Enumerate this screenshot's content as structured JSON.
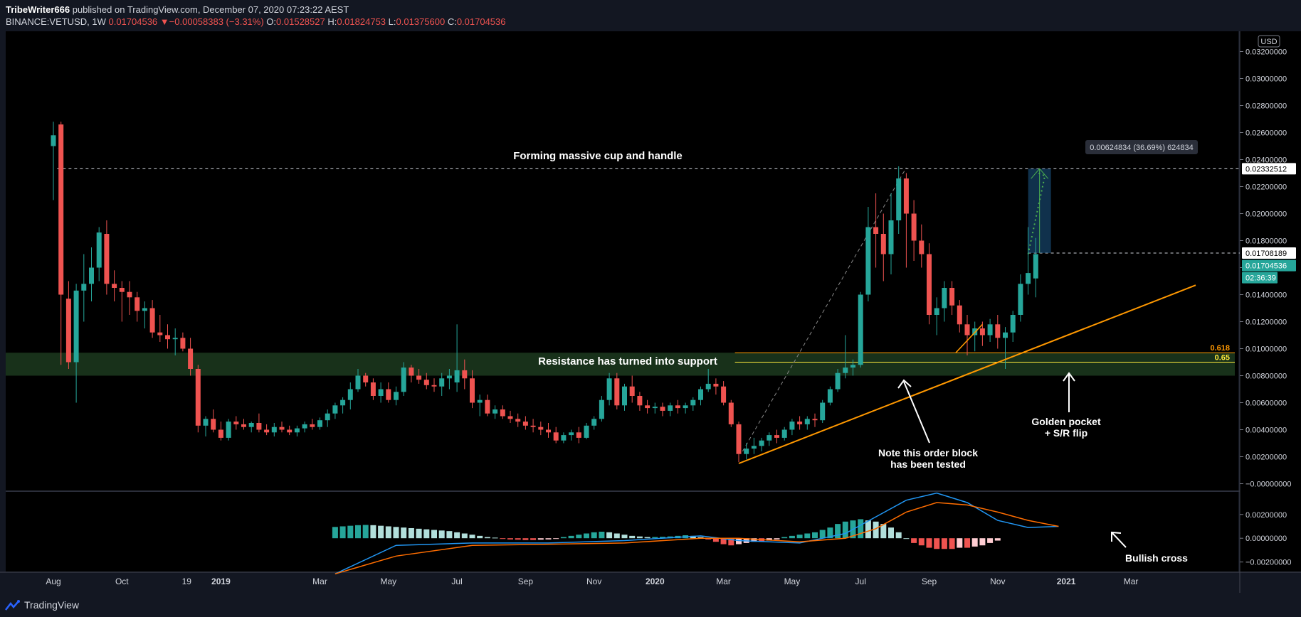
{
  "header": {
    "publisher": "TribeWriter666",
    "published_text": "published on TradingView.com, December 07, 2020 07:23:22 AEST",
    "symbol": "BINANCE:VETUSD, 1W",
    "last": "0.01704536",
    "change_arrow": "▼",
    "change": "−0.00058383 (−3.31%)",
    "o_label": "O:",
    "o": "0.01528527",
    "h_label": "H:",
    "h": "0.01824753",
    "l_label": "L:",
    "l": "0.01375600",
    "c_label": "C:",
    "c": "0.01704536"
  },
  "footer": {
    "brand": "TradingView",
    "logo_icon": "tradingview-logo-icon"
  },
  "colors": {
    "up": "#26a69a",
    "down": "#ef5350",
    "bg": "#000000",
    "grid": "#1e222d",
    "trend": "#ff9800",
    "macd": "#2196f3",
    "signal": "#ff6d00"
  },
  "chart_data": {
    "type": "candlestick",
    "symbol": "BINANCE:VETUSD",
    "interval": "1W",
    "currency": "USD",
    "x_ticks": [
      "Aug",
      "Oct",
      "19",
      "2019",
      "Mar",
      "May",
      "Jul",
      "Sep",
      "Nov",
      "2020",
      "Mar",
      "May",
      "Jul",
      "Sep",
      "Nov",
      "2021",
      "Mar"
    ],
    "x_tick_weeks": [
      0,
      9,
      17.5,
      22,
      35,
      44,
      53,
      62,
      71,
      79,
      88,
      97,
      106,
      115,
      124,
      133,
      141.5
    ],
    "y_ticks": [
      "0.03200000",
      "0.03000000",
      "0.02800000",
      "0.02600000",
      "0.02400000",
      "0.02200000",
      "0.02000000",
      "0.01800000",
      "0.01600000",
      "0.01400000",
      "0.01200000",
      "0.01000000",
      "0.00800000",
      "0.00600000",
      "0.00400000",
      "0.00200000",
      "−0.00000000"
    ],
    "y_range": [
      -0.0005,
      0.0335
    ],
    "candles": [
      [
        0.025,
        0.0268,
        0.021,
        0.0258
      ],
      [
        0.0266,
        0.0268,
        0.0088,
        0.014
      ],
      [
        0.0137,
        0.015,
        0.0085,
        0.009
      ],
      [
        0.009,
        0.0148,
        0.006,
        0.0143
      ],
      [
        0.0143,
        0.017,
        0.012,
        0.0148
      ],
      [
        0.0148,
        0.0175,
        0.0135,
        0.016
      ],
      [
        0.016,
        0.019,
        0.015,
        0.0186
      ],
      [
        0.0185,
        0.0195,
        0.014,
        0.0148
      ],
      [
        0.0148,
        0.0158,
        0.0135,
        0.0145
      ],
      [
        0.0145,
        0.015,
        0.012,
        0.0142
      ],
      [
        0.0142,
        0.015,
        0.0125,
        0.0138
      ],
      [
        0.0138,
        0.0142,
        0.012,
        0.0128
      ],
      [
        0.0128,
        0.0135,
        0.0115,
        0.013
      ],
      [
        0.013,
        0.0136,
        0.0108,
        0.0112
      ],
      [
        0.0112,
        0.0125,
        0.0105,
        0.011
      ],
      [
        0.011,
        0.0118,
        0.01,
        0.0107
      ],
      [
        0.0107,
        0.0115,
        0.0095,
        0.0108
      ],
      [
        0.0108,
        0.0112,
        0.0098,
        0.01
      ],
      [
        0.01,
        0.0108,
        0.008,
        0.0085
      ],
      [
        0.0085,
        0.0088,
        0.0038,
        0.0043
      ],
      [
        0.0043,
        0.005,
        0.0035,
        0.0048
      ],
      [
        0.0048,
        0.0055,
        0.0038,
        0.004
      ],
      [
        0.004,
        0.0046,
        0.0032,
        0.0034
      ],
      [
        0.0034,
        0.0048,
        0.0032,
        0.0046
      ],
      [
        0.0046,
        0.005,
        0.004,
        0.0044
      ],
      [
        0.0044,
        0.0048,
        0.004,
        0.0042
      ],
      [
        0.0042,
        0.0046,
        0.0038,
        0.0045
      ],
      [
        0.0045,
        0.0052,
        0.0038,
        0.004
      ],
      [
        0.004,
        0.0044,
        0.0036,
        0.0038
      ],
      [
        0.0038,
        0.0045,
        0.0035,
        0.0042
      ],
      [
        0.0042,
        0.0046,
        0.0038,
        0.004
      ],
      [
        0.004,
        0.0043,
        0.0036,
        0.0038
      ],
      [
        0.0038,
        0.0043,
        0.0035,
        0.0041
      ],
      [
        0.0041,
        0.0046,
        0.0038,
        0.0044
      ],
      [
        0.0044,
        0.0048,
        0.004,
        0.0042
      ],
      [
        0.0042,
        0.0049,
        0.004,
        0.0047
      ],
      [
        0.0047,
        0.0055,
        0.0042,
        0.0052
      ],
      [
        0.0052,
        0.006,
        0.0048,
        0.0058
      ],
      [
        0.0058,
        0.0064,
        0.0052,
        0.0062
      ],
      [
        0.0062,
        0.0075,
        0.0055,
        0.007
      ],
      [
        0.007,
        0.0085,
        0.0068,
        0.008
      ],
      [
        0.008,
        0.0082,
        0.0072,
        0.0075
      ],
      [
        0.0075,
        0.0078,
        0.0062,
        0.0065
      ],
      [
        0.0065,
        0.0075,
        0.006,
        0.007
      ],
      [
        0.007,
        0.0075,
        0.006,
        0.0062
      ],
      [
        0.0062,
        0.0072,
        0.0058,
        0.0068
      ],
      [
        0.0068,
        0.009,
        0.0065,
        0.0086
      ],
      [
        0.0086,
        0.0088,
        0.0075,
        0.008
      ],
      [
        0.008,
        0.0085,
        0.0074,
        0.0077
      ],
      [
        0.0077,
        0.0082,
        0.007,
        0.0073
      ],
      [
        0.0073,
        0.0078,
        0.0068,
        0.0072
      ],
      [
        0.0072,
        0.0082,
        0.0065,
        0.0078
      ],
      [
        0.0078,
        0.0085,
        0.007,
        0.008
      ],
      [
        0.0075,
        0.0118,
        0.0068,
        0.0084
      ],
      [
        0.0084,
        0.0092,
        0.007,
        0.0078
      ],
      [
        0.0078,
        0.0084,
        0.0056,
        0.006
      ],
      [
        0.006,
        0.0066,
        0.005,
        0.0062
      ],
      [
        0.0062,
        0.0066,
        0.005,
        0.0052
      ],
      [
        0.0052,
        0.0058,
        0.0048,
        0.0055
      ],
      [
        0.0055,
        0.0058,
        0.0048,
        0.005
      ],
      [
        0.005,
        0.0054,
        0.0045,
        0.0048
      ],
      [
        0.0048,
        0.0052,
        0.0042,
        0.0046
      ],
      [
        0.0046,
        0.005,
        0.004,
        0.0043
      ],
      [
        0.0043,
        0.0048,
        0.0038,
        0.0042
      ],
      [
        0.0042,
        0.0046,
        0.0036,
        0.004
      ],
      [
        0.004,
        0.0045,
        0.0034,
        0.0038
      ],
      [
        0.0038,
        0.0042,
        0.003,
        0.0032
      ],
      [
        0.0032,
        0.0038,
        0.003,
        0.0036
      ],
      [
        0.0036,
        0.004,
        0.0032,
        0.0038
      ],
      [
        0.0038,
        0.0042,
        0.003,
        0.0034
      ],
      [
        0.0034,
        0.0045,
        0.0033,
        0.0043
      ],
      [
        0.0043,
        0.005,
        0.004,
        0.0048
      ],
      [
        0.0048,
        0.0065,
        0.0046,
        0.0062
      ],
      [
        0.0062,
        0.0082,
        0.0058,
        0.0078
      ],
      [
        0.0078,
        0.0082,
        0.0055,
        0.0058
      ],
      [
        0.0058,
        0.0074,
        0.0054,
        0.0072
      ],
      [
        0.0072,
        0.008,
        0.006,
        0.0065
      ],
      [
        0.0065,
        0.0068,
        0.0054,
        0.0058
      ],
      [
        0.0058,
        0.0062,
        0.0052,
        0.0056
      ],
      [
        0.0056,
        0.006,
        0.0052,
        0.0057
      ],
      [
        0.0057,
        0.006,
        0.005,
        0.0054
      ],
      [
        0.0054,
        0.006,
        0.005,
        0.0058
      ],
      [
        0.0058,
        0.0062,
        0.0052,
        0.0056
      ],
      [
        0.0056,
        0.006,
        0.0052,
        0.0058
      ],
      [
        0.0058,
        0.0064,
        0.0054,
        0.0062
      ],
      [
        0.0062,
        0.0072,
        0.0058,
        0.007
      ],
      [
        0.007,
        0.0085,
        0.0068,
        0.0074
      ],
      [
        0.0074,
        0.0078,
        0.0066,
        0.0072
      ],
      [
        0.0072,
        0.0076,
        0.0058,
        0.006
      ],
      [
        0.006,
        0.0062,
        0.0042,
        0.0044
      ],
      [
        0.0044,
        0.0046,
        0.0016,
        0.0022
      ],
      [
        0.0022,
        0.003,
        0.0018,
        0.0026
      ],
      [
        0.0026,
        0.0034,
        0.0022,
        0.0028
      ],
      [
        0.0028,
        0.0034,
        0.0024,
        0.0032
      ],
      [
        0.0032,
        0.0038,
        0.0028,
        0.0036
      ],
      [
        0.0036,
        0.004,
        0.003,
        0.0034
      ],
      [
        0.0034,
        0.0042,
        0.0032,
        0.004
      ],
      [
        0.004,
        0.0048,
        0.0036,
        0.0046
      ],
      [
        0.0046,
        0.005,
        0.004,
        0.0044
      ],
      [
        0.0044,
        0.005,
        0.004,
        0.0048
      ],
      [
        0.0048,
        0.0052,
        0.0042,
        0.0047
      ],
      [
        0.0047,
        0.0062,
        0.0045,
        0.006
      ],
      [
        0.006,
        0.0072,
        0.0058,
        0.007
      ],
      [
        0.007,
        0.0085,
        0.0068,
        0.0082
      ],
      [
        0.0082,
        0.011,
        0.0078,
        0.0086
      ],
      [
        0.0086,
        0.0092,
        0.008,
        0.0088
      ],
      [
        0.0088,
        0.0142,
        0.0086,
        0.014
      ],
      [
        0.014,
        0.0205,
        0.0135,
        0.019
      ],
      [
        0.019,
        0.0215,
        0.016,
        0.0185
      ],
      [
        0.0185,
        0.02,
        0.015,
        0.017
      ],
      [
        0.017,
        0.0215,
        0.0155,
        0.0195
      ],
      [
        0.0195,
        0.0235,
        0.0185,
        0.0226
      ],
      [
        0.0226,
        0.023,
        0.016,
        0.02
      ],
      [
        0.02,
        0.021,
        0.0165,
        0.018
      ],
      [
        0.018,
        0.0192,
        0.016,
        0.017
      ],
      [
        0.017,
        0.0178,
        0.0118,
        0.0125
      ],
      [
        0.0125,
        0.0138,
        0.011,
        0.013
      ],
      [
        0.013,
        0.015,
        0.012,
        0.0145
      ],
      [
        0.0145,
        0.015,
        0.0125,
        0.0132
      ],
      [
        0.0132,
        0.0136,
        0.0112,
        0.0118
      ],
      [
        0.0118,
        0.0125,
        0.0095,
        0.011
      ],
      [
        0.011,
        0.012,
        0.0098,
        0.0115
      ],
      [
        0.0115,
        0.012,
        0.0102,
        0.011
      ],
      [
        0.011,
        0.0122,
        0.0105,
        0.0118
      ],
      [
        0.0118,
        0.0125,
        0.01,
        0.0108
      ],
      [
        0.0108,
        0.0116,
        0.0085,
        0.0112
      ],
      [
        0.0112,
        0.0128,
        0.0105,
        0.0125
      ],
      [
        0.0125,
        0.0155,
        0.012,
        0.0148
      ],
      [
        0.0148,
        0.019,
        0.014,
        0.0156
      ],
      [
        0.0152,
        0.0182,
        0.0138,
        0.017
      ]
    ],
    "support_zone": [
      0.008,
      0.0097
    ],
    "levels": [
      {
        "label": "0.618",
        "value": 0.0097,
        "color": "#ff9800"
      },
      {
        "label": "0.65",
        "value": 0.009,
        "color": "#ffeb3b"
      }
    ],
    "target_line": 0.02332512,
    "entry_line": 0.01708189,
    "price_labels": [
      "0.02332512",
      "0.01708189",
      "0.01704536",
      "02:36:39"
    ],
    "currency_badge": "USD",
    "measure_label": "0.00624834 (36.69%) 624834",
    "trendline": {
      "from": [
        90,
        0.0015
      ],
      "to": [
        150,
        0.0147
      ]
    },
    "annotations": {
      "cup": "Forming massive cup and handle",
      "support": "Resistance has turned into support",
      "order_block_line1": "Note this order block",
      "order_block_line2": "has been tested",
      "golden_line1": "Golden pocket",
      "golden_line2": "+ S/R flip",
      "bullish_cross": "Bullish cross"
    },
    "macd": {
      "y_ticks": [
        "0.00200000",
        "0.00000000",
        "−0.00200000"
      ],
      "y_range": [
        -0.0028,
        0.0039
      ],
      "start_week": 37,
      "histogram": [
        0.00095,
        0.001,
        0.00105,
        0.0011,
        0.00112,
        0.0011,
        0.00105,
        0.001,
        0.00095,
        0.0009,
        0.00085,
        0.0008,
        0.00075,
        0.0007,
        0.00065,
        0.0006,
        0.0005,
        0.0004,
        0.0003,
        0.0002,
        0.0001,
        5e-05,
        -5e-05,
        -0.0001,
        -0.00012,
        -0.00015,
        -0.00015,
        -0.00012,
        -0.0001,
        -5e-05,
        0.0001,
        0.0002,
        0.0003,
        0.0004,
        0.0005,
        0.00055,
        0.0005,
        0.0004,
        0.0003,
        0.0002,
        0.00015,
        0.0001,
        0.0001,
        0.00012,
        0.00015,
        0.0002,
        0.00025,
        0.0002,
        0.0001,
        -0.0001,
        -0.0003,
        -0.0005,
        -0.0006,
        -0.0005,
        -0.0004,
        -0.0003,
        -0.0003,
        -0.0002,
        -0.0001,
        0.0001,
        0.0002,
        0.0003,
        0.0004,
        0.0005,
        0.0007,
        0.0009,
        0.0012,
        0.0014,
        0.0015,
        0.0016,
        0.0015,
        0.0014,
        0.0012,
        0.0009,
        0.0005,
        0,
        -0.0004,
        -0.0006,
        -0.0008,
        -0.0009,
        -0.0009,
        -0.0009,
        -0.0008,
        -0.0008,
        -0.0007,
        -0.0006,
        -0.0004,
        -0.0002
      ],
      "macd_points": [
        [
          37,
          -0.003
        ],
        [
          45,
          -0.0006
        ],
        [
          55,
          -0.0004
        ],
        [
          65,
          -0.0004
        ],
        [
          75,
          -0.0002
        ],
        [
          85,
          0.0002
        ],
        [
          90,
          -0.0002
        ],
        [
          98,
          -0.0004
        ],
        [
          104,
          0.0004
        ],
        [
          108,
          0.0018
        ],
        [
          112,
          0.0032
        ],
        [
          116,
          0.0038
        ],
        [
          120,
          0.003
        ],
        [
          124,
          0.0015
        ],
        [
          128,
          0.0009
        ],
        [
          132,
          0.001
        ]
      ],
      "signal_points": [
        [
          37,
          -0.003
        ],
        [
          45,
          -0.0015
        ],
        [
          55,
          -0.0006
        ],
        [
          65,
          -0.0005
        ],
        [
          75,
          -0.0004
        ],
        [
          85,
          0.0
        ],
        [
          90,
          0.0
        ],
        [
          98,
          -0.0003
        ],
        [
          104,
          0.0
        ],
        [
          108,
          0.0008
        ],
        [
          112,
          0.0022
        ],
        [
          116,
          0.003
        ],
        [
          120,
          0.0028
        ],
        [
          124,
          0.0022
        ],
        [
          128,
          0.0015
        ],
        [
          132,
          0.001
        ]
      ]
    }
  }
}
